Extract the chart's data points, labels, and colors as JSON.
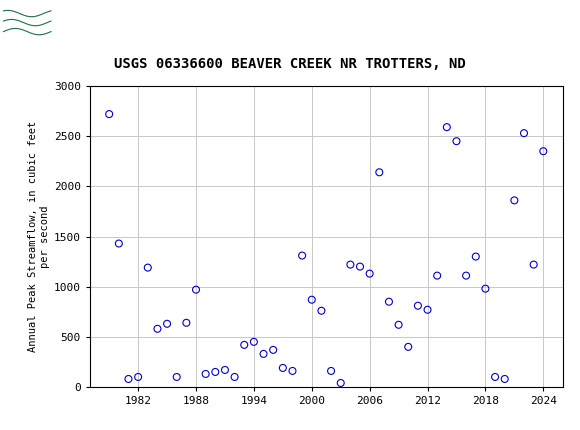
{
  "title": "USGS 06336600 BEAVER CREEK NR TROTTERS, ND",
  "ylabel": "Annual Peak Streamflow, in cubic feet\nper second",
  "years": [
    1979,
    1980,
    1981,
    1982,
    1983,
    1984,
    1985,
    1986,
    1987,
    1988,
    1989,
    1990,
    1991,
    1992,
    1993,
    1994,
    1995,
    1996,
    1997,
    1998,
    1999,
    2000,
    2001,
    2002,
    2003,
    2004,
    2005,
    2006,
    2007,
    2008,
    2009,
    2010,
    2011,
    2012,
    2013,
    2014,
    2015,
    2016,
    2017,
    2018,
    2019,
    2020,
    2021,
    2022,
    2023,
    2024
  ],
  "flows": [
    2720,
    1430,
    80,
    100,
    1190,
    580,
    630,
    100,
    640,
    970,
    130,
    150,
    170,
    100,
    420,
    450,
    330,
    370,
    190,
    160,
    1310,
    870,
    760,
    160,
    40,
    1220,
    1200,
    1130,
    2140,
    850,
    620,
    400,
    810,
    770,
    1110,
    2590,
    2450,
    1110,
    1300,
    980,
    100,
    80,
    1860,
    2530,
    1220,
    2350
  ],
  "marker_color": "#0000CD",
  "marker_size": 5,
  "xlim": [
    1977,
    2026
  ],
  "ylim": [
    0,
    3000
  ],
  "yticks": [
    0,
    500,
    1000,
    1500,
    2000,
    2500,
    3000
  ],
  "xticks": [
    1982,
    1988,
    1994,
    2000,
    2006,
    2012,
    2018,
    2024
  ],
  "grid_color": "#c8c8c8",
  "bg_color": "#ffffff",
  "header_color": "#1e7145",
  "title_fontsize": 10,
  "ylabel_fontsize": 7.5,
  "tick_fontsize": 8
}
